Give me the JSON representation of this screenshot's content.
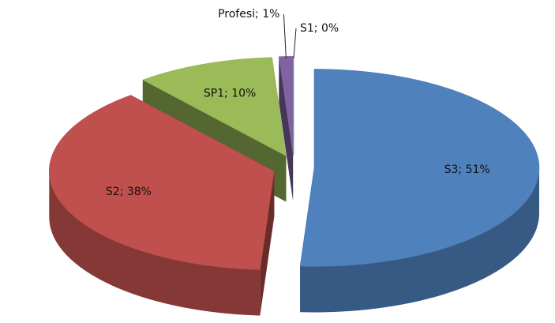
{
  "chart_data": {
    "type": "pie",
    "categories": [
      "S3",
      "S2",
      "SP1",
      "Profesi",
      "S1"
    ],
    "values": [
      51,
      38,
      10,
      1,
      0
    ],
    "value_labels": [
      "S3; 51%",
      "S2; 38%",
      "SP1; 10%",
      "Profesi; 1%",
      "S1; 0%"
    ],
    "colors": [
      "#4f81bd",
      "#c0504d",
      "#9bbb59",
      "#8064a2",
      "#4bacc6"
    ]
  }
}
